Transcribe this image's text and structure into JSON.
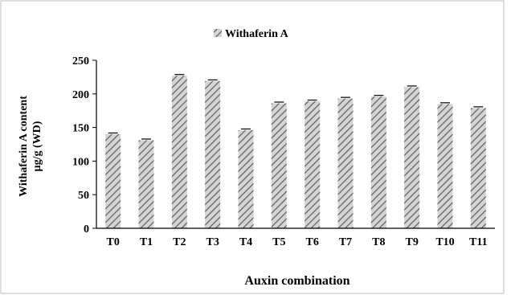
{
  "chart_data": {
    "type": "bar",
    "categories": [
      "T0",
      "T1",
      "T2",
      "T3",
      "T4",
      "T5",
      "T6",
      "T7",
      "T8",
      "T9",
      "T10",
      "T11"
    ],
    "series": [
      {
        "name": "Withaferin A",
        "values": [
          140,
          131,
          227,
          219,
          146,
          186,
          189,
          193,
          196,
          210,
          185,
          179
        ]
      }
    ],
    "xlabel": "Auxin combination",
    "ylabel_lines": [
      "Withaferin A content",
      "µg/g (WD)"
    ],
    "ylim": [
      0,
      250
    ],
    "yticks": [
      0,
      50,
      100,
      150,
      200,
      250
    ],
    "legend_position": "top",
    "grid": false,
    "bar_fill": "hatched-grey",
    "error_bars": true
  }
}
